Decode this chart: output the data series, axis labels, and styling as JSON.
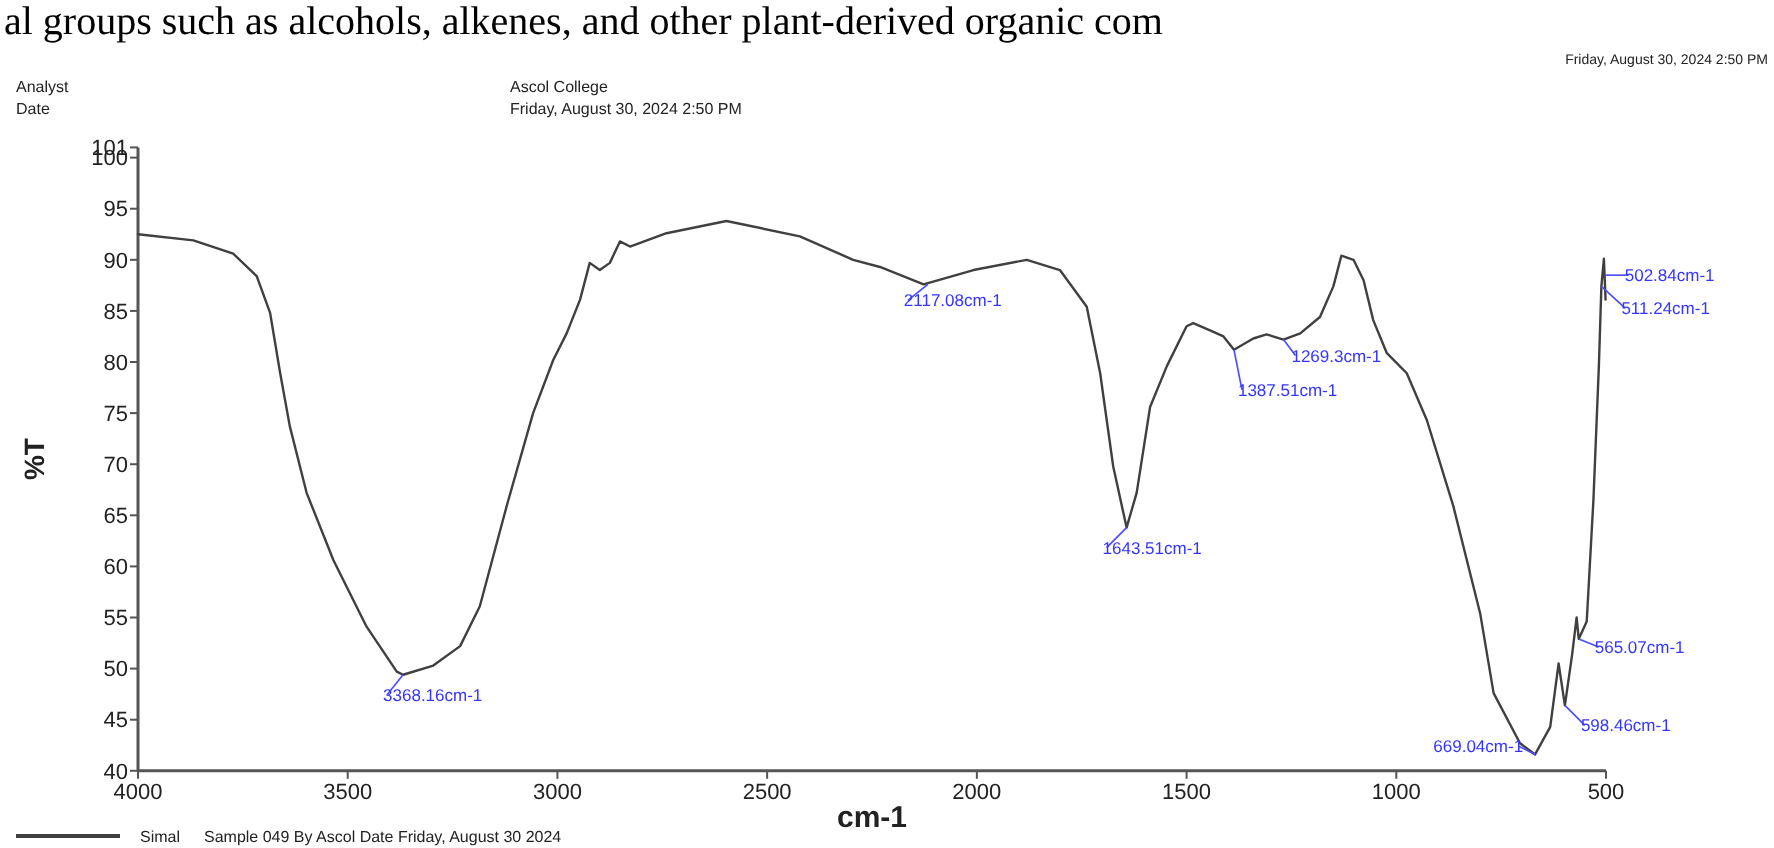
{
  "chart_data": {
    "type": "line",
    "xlabel": "cm-1",
    "ylabel": "%T",
    "legend": "bottom left",
    "xlim": [
      4000,
      500
    ],
    "ylim": [
      40,
      101
    ],
    "xticks": [
      4000,
      3500,
      3000,
      2500,
      2000,
      1500,
      1000,
      500
    ],
    "yticks": [
      40,
      45,
      50,
      55,
      60,
      65,
      70,
      75,
      80,
      85,
      90,
      95,
      100,
      101
    ],
    "series": [
      {
        "name": "Simal",
        "color": "#404040",
        "x": [
          4000,
          3868,
          3773,
          3717,
          3685,
          3661,
          3638,
          3598,
          3534,
          3455,
          3383,
          3368,
          3296,
          3232,
          3185,
          3121,
          3058,
          3010,
          2978,
          2946,
          2923,
          2899,
          2875,
          2851,
          2827,
          2740,
          2597,
          2422,
          2295,
          2231,
          2127,
          2008,
          1881,
          1802,
          1738,
          1706,
          1675,
          1643,
          1619,
          1587,
          1547,
          1500,
          1484,
          1444,
          1412,
          1387,
          1341,
          1309,
          1269,
          1229,
          1182,
          1150,
          1131,
          1102,
          1078,
          1055,
          1023,
          975,
          927,
          864,
          800,
          768,
          705,
          669,
          633,
          613,
          598,
          581,
          570,
          565,
          546,
          530,
          517,
          511,
          505,
          501
        ],
        "values": [
          92.5,
          91.9,
          90.6,
          88.4,
          84.8,
          78.9,
          73.7,
          67.2,
          60.6,
          54.1,
          49.7,
          49.4,
          50.3,
          52.2,
          56.1,
          65.9,
          75.0,
          80.2,
          82.8,
          86.1,
          89.7,
          89.0,
          89.7,
          91.8,
          91.3,
          92.6,
          93.8,
          92.3,
          90.0,
          89.3,
          87.6,
          89.0,
          90.0,
          89.0,
          85.4,
          78.9,
          69.8,
          63.8,
          67.2,
          75.6,
          79.6,
          83.5,
          83.8,
          83.1,
          82.5,
          81.2,
          82.3,
          82.7,
          82.2,
          82.8,
          84.4,
          87.4,
          90.4,
          90.0,
          88.0,
          84.1,
          80.9,
          78.9,
          74.3,
          65.9,
          55.4,
          47.6,
          42.7,
          41.6,
          44.3,
          50.5,
          46.4,
          51.3,
          55.0,
          52.9,
          54.6,
          66.5,
          79.6,
          87.4,
          90.1,
          86.1
        ]
      }
    ],
    "annotations": [
      "al groups such as alcohols, alkenes, and other plant-derived organic com",
      "Analyst",
      "Date",
      "Ascol College",
      "Friday, August 30, 2024 2:50 PM",
      "Friday, August 30, 2024 2:50 PM",
      "Sample 049 By Ascol Date Friday, August 30 2024",
      {
        "text": "3368.16cm-1",
        "x": 3368,
        "y": 49.4
      },
      {
        "text": "2117.08cm-1",
        "x": 2117,
        "y": 87.6
      },
      {
        "text": "1643.51cm-1",
        "x": 1643,
        "y": 63.8
      },
      {
        "text": "1387.51cm-1",
        "x": 1387,
        "y": 81.2
      },
      {
        "text": "1269.3cm-1",
        "x": 1269,
        "y": 82.2
      },
      {
        "text": "511.24cm-1",
        "x": 511,
        "y": 87.4
      },
      {
        "text": "502.84cm-1",
        "x": 503,
        "y": 88.5
      },
      {
        "text": "565.07cm-1",
        "x": 565,
        "y": 52.9
      },
      {
        "text": "598.46cm-1",
        "x": 598,
        "y": 46.4
      },
      {
        "text": "669.04cm-1",
        "x": 669,
        "y": 41.6
      }
    ]
  }
}
